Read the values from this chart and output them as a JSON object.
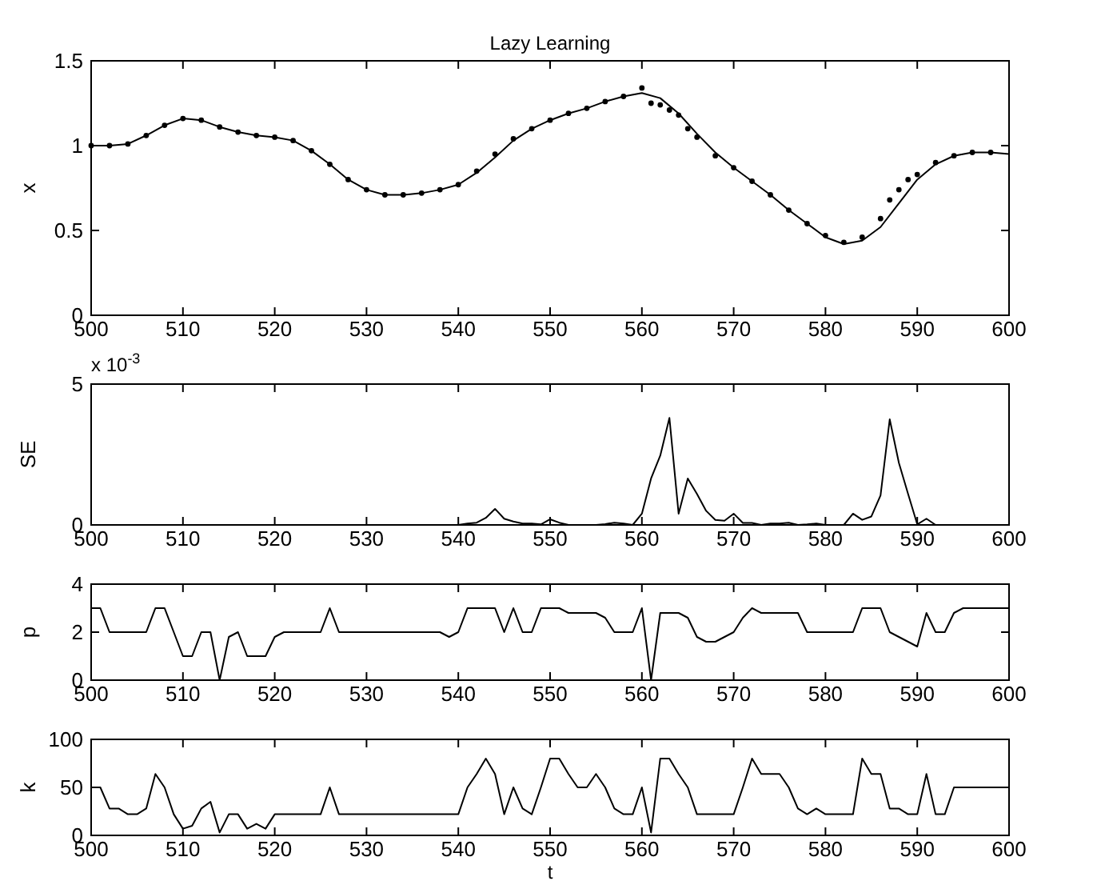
{
  "chart_data": [
    {
      "type": "line",
      "title": "Lazy Learning",
      "ylabel": "x",
      "xlim": [
        500,
        600
      ],
      "xticks": [
        500,
        510,
        520,
        530,
        540,
        550,
        560,
        570,
        580,
        590,
        600
      ],
      "ylim": [
        0,
        1.5
      ],
      "yticks": [
        0,
        0.5,
        1,
        1.5
      ],
      "grid": false,
      "series": [
        {
          "color": "#000000",
          "line_style": "solid",
          "x": [
            500,
            502,
            504,
            506,
            508,
            510,
            512,
            514,
            516,
            518,
            520,
            522,
            524,
            526,
            528,
            530,
            532,
            534,
            536,
            538,
            540,
            542,
            544,
            546,
            548,
            550,
            552,
            554,
            556,
            558,
            560,
            562,
            564,
            566,
            568,
            570,
            572,
            574,
            576,
            578,
            580,
            582,
            584,
            586,
            588,
            590,
            592,
            594,
            596,
            598,
            600
          ],
          "values": [
            1.0,
            1.0,
            1.01,
            1.06,
            1.12,
            1.16,
            1.15,
            1.11,
            1.08,
            1.06,
            1.05,
            1.03,
            0.97,
            0.89,
            0.8,
            0.74,
            0.71,
            0.71,
            0.72,
            0.74,
            0.77,
            0.84,
            0.93,
            1.03,
            1.1,
            1.15,
            1.19,
            1.22,
            1.26,
            1.29,
            1.31,
            1.28,
            1.19,
            1.07,
            0.96,
            0.87,
            0.79,
            0.71,
            0.62,
            0.54,
            0.46,
            0.42,
            0.44,
            0.52,
            0.66,
            0.8,
            0.89,
            0.94,
            0.96,
            0.96,
            0.95
          ]
        },
        {
          "type": "scatter",
          "color": "#000000",
          "marker": "circle",
          "x": [
            500,
            502,
            504,
            506,
            508,
            510,
            512,
            514,
            516,
            518,
            520,
            522,
            524,
            526,
            528,
            530,
            532,
            534,
            536,
            538,
            540,
            542,
            544,
            546,
            548,
            550,
            552,
            554,
            556,
            558,
            560,
            561,
            562,
            563,
            564,
            565,
            566,
            568,
            570,
            572,
            574,
            576,
            578,
            580,
            582,
            584,
            586,
            587,
            588,
            589,
            590,
            592,
            594,
            596,
            598
          ],
          "values": [
            1.0,
            1.0,
            1.01,
            1.06,
            1.12,
            1.16,
            1.15,
            1.11,
            1.08,
            1.06,
            1.05,
            1.03,
            0.97,
            0.89,
            0.8,
            0.74,
            0.71,
            0.71,
            0.72,
            0.74,
            0.77,
            0.85,
            0.95,
            1.04,
            1.1,
            1.15,
            1.19,
            1.22,
            1.26,
            1.29,
            1.34,
            1.25,
            1.24,
            1.21,
            1.18,
            1.1,
            1.05,
            0.94,
            0.87,
            0.79,
            0.71,
            0.62,
            0.54,
            0.47,
            0.43,
            0.46,
            0.57,
            0.68,
            0.74,
            0.8,
            0.83,
            0.9,
            0.94,
            0.96,
            0.96
          ]
        }
      ]
    },
    {
      "type": "line",
      "ylabel": "SE",
      "annotations": [
        "x 10$^{-3}$"
      ],
      "xlim": [
        500,
        600
      ],
      "xticks": [
        500,
        510,
        520,
        530,
        540,
        550,
        560,
        570,
        580,
        590,
        600
      ],
      "ylim": [
        0,
        5
      ],
      "yticks": [
        0,
        5
      ],
      "grid": false,
      "x": [
        500,
        501,
        502,
        503,
        504,
        505,
        506,
        507,
        508,
        509,
        510,
        511,
        512,
        513,
        514,
        515,
        516,
        517,
        518,
        519,
        520,
        521,
        522,
        523,
        524,
        525,
        526,
        527,
        528,
        529,
        530,
        531,
        532,
        533,
        534,
        535,
        536,
        537,
        538,
        539,
        540,
        541,
        542,
        543,
        544,
        545,
        546,
        547,
        548,
        549,
        550,
        551,
        552,
        553,
        554,
        555,
        556,
        557,
        558,
        559,
        560,
        561,
        562,
        563,
        564,
        565,
        566,
        567,
        568,
        569,
        570,
        571,
        572,
        573,
        574,
        575,
        576,
        577,
        578,
        579,
        580,
        581,
        582,
        583,
        584,
        585,
        586,
        587,
        588,
        589,
        590,
        591,
        592,
        593,
        594,
        595,
        596,
        597,
        598,
        599,
        600
      ],
      "series": [
        {
          "color": "#000000",
          "values": [
            0,
            0,
            0,
            0,
            0,
            0,
            0,
            0,
            0,
            0,
            0,
            0,
            0,
            0,
            0,
            0,
            0,
            0,
            0,
            0,
            0,
            0,
            0,
            0,
            0,
            0,
            0,
            0,
            0,
            0,
            0,
            0,
            0,
            0,
            0,
            0,
            0,
            0,
            0,
            0,
            0,
            0.05,
            0.08,
            0.25,
            0.57,
            0.22,
            0.12,
            0.05,
            0.05,
            0.02,
            0.2,
            0.08,
            0,
            0,
            0,
            0,
            0.03,
            0.08,
            0.05,
            0,
            0.4,
            1.65,
            2.46,
            3.8,
            0.4,
            1.65,
            1.1,
            0.5,
            0.18,
            0.15,
            0.4,
            0.07,
            0.07,
            0,
            0.05,
            0.05,
            0.08,
            0,
            0.02,
            0.05,
            0,
            0,
            0,
            0.4,
            0.18,
            0.3,
            1.05,
            3.75,
            2.2,
            1.1,
            0.02,
            0.22,
            0,
            0,
            0,
            0,
            0,
            0,
            0,
            0,
            0
          ]
        }
      ]
    },
    {
      "type": "line",
      "ylabel": "p",
      "xlim": [
        500,
        600
      ],
      "xticks": [
        500,
        510,
        520,
        530,
        540,
        550,
        560,
        570,
        580,
        590,
        600
      ],
      "ylim": [
        0,
        4
      ],
      "yticks": [
        0,
        2,
        4
      ],
      "grid": false,
      "x": [
        500,
        501,
        502,
        503,
        504,
        505,
        506,
        507,
        508,
        509,
        510,
        511,
        512,
        513,
        514,
        515,
        516,
        517,
        518,
        519,
        520,
        521,
        522,
        523,
        524,
        525,
        526,
        527,
        528,
        529,
        530,
        531,
        532,
        533,
        534,
        535,
        536,
        537,
        538,
        539,
        540,
        541,
        542,
        543,
        544,
        545,
        546,
        547,
        548,
        549,
        550,
        551,
        552,
        553,
        554,
        555,
        556,
        557,
        558,
        559,
        560,
        561,
        562,
        563,
        564,
        565,
        566,
        567,
        568,
        569,
        570,
        571,
        572,
        573,
        574,
        575,
        576,
        577,
        578,
        579,
        580,
        581,
        582,
        583,
        584,
        585,
        586,
        587,
        588,
        589,
        590,
        591,
        592,
        593,
        594,
        595,
        596,
        597,
        598,
        599,
        600
      ],
      "series": [
        {
          "color": "#000000",
          "values": [
            3,
            3,
            2,
            2,
            2,
            2,
            2,
            3,
            3,
            2,
            1,
            1,
            2,
            2,
            0,
            1.8,
            2,
            1,
            1,
            1,
            1.8,
            2,
            2,
            2,
            2,
            2,
            3,
            2,
            2,
            2,
            2,
            2,
            2,
            2,
            2,
            2,
            2,
            2,
            2,
            1.8,
            2,
            3,
            3,
            3,
            3,
            2,
            3,
            2,
            2,
            3,
            3,
            3,
            2.8,
            2.8,
            2.8,
            2.8,
            2.6,
            2,
            2,
            2,
            3,
            0,
            2.8,
            2.8,
            2.8,
            2.6,
            1.8,
            1.6,
            1.6,
            1.8,
            2,
            2.6,
            3,
            2.8,
            2.8,
            2.8,
            2.8,
            2.8,
            2,
            2,
            2,
            2,
            2,
            2,
            3,
            3,
            3,
            2,
            1.8,
            1.6,
            1.4,
            2.8,
            2,
            2,
            2.8,
            3,
            3,
            3,
            3,
            3,
            3
          ]
        }
      ]
    },
    {
      "type": "line",
      "ylabel": "k",
      "xlabel": "t",
      "xlim": [
        500,
        600
      ],
      "xticks": [
        500,
        510,
        520,
        530,
        540,
        550,
        560,
        570,
        580,
        590,
        600
      ],
      "ylim": [
        0,
        100
      ],
      "yticks": [
        0,
        50,
        100
      ],
      "grid": false,
      "x": [
        500,
        501,
        502,
        503,
        504,
        505,
        506,
        507,
        508,
        509,
        510,
        511,
        512,
        513,
        514,
        515,
        516,
        517,
        518,
        519,
        520,
        521,
        522,
        523,
        524,
        525,
        526,
        527,
        528,
        529,
        530,
        531,
        532,
        533,
        534,
        535,
        536,
        537,
        538,
        539,
        540,
        541,
        542,
        543,
        544,
        545,
        546,
        547,
        548,
        549,
        550,
        551,
        552,
        553,
        554,
        555,
        556,
        557,
        558,
        559,
        560,
        561,
        562,
        563,
        564,
        565,
        566,
        567,
        568,
        569,
        570,
        571,
        572,
        573,
        574,
        575,
        576,
        577,
        578,
        579,
        580,
        581,
        582,
        583,
        584,
        585,
        586,
        587,
        588,
        589,
        590,
        591,
        592,
        593,
        594,
        595,
        596,
        597,
        598,
        599,
        600
      ],
      "series": [
        {
          "color": "#000000",
          "values": [
            50,
            50,
            28,
            28,
            22,
            22,
            28,
            64,
            50,
            22,
            7,
            10,
            28,
            35,
            3,
            22,
            22,
            7,
            12,
            7,
            22,
            22,
            22,
            22,
            22,
            22,
            50,
            22,
            22,
            22,
            22,
            22,
            22,
            22,
            22,
            22,
            22,
            22,
            22,
            22,
            22,
            50,
            64,
            80,
            64,
            22,
            50,
            28,
            22,
            50,
            80,
            80,
            64,
            50,
            50,
            64,
            50,
            28,
            22,
            22,
            50,
            3,
            80,
            80,
            64,
            50,
            22,
            22,
            22,
            22,
            22,
            50,
            80,
            64,
            64,
            64,
            50,
            28,
            22,
            28,
            22,
            22,
            22,
            22,
            80,
            64,
            64,
            28,
            28,
            22,
            22,
            64,
            22,
            22,
            50,
            50,
            50,
            50,
            50,
            50,
            50
          ]
        }
      ]
    }
  ]
}
